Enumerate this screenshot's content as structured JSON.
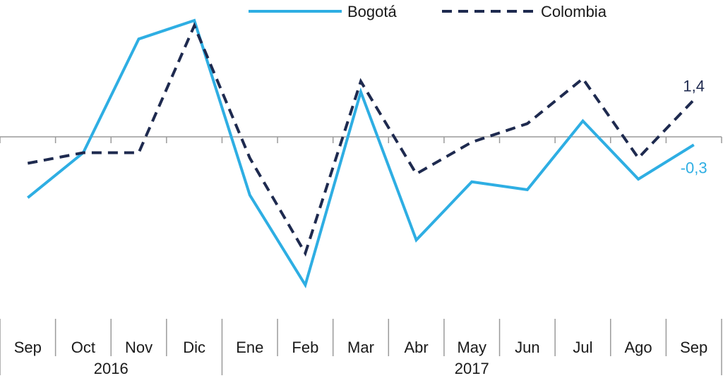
{
  "chart_data": {
    "type": "line",
    "categories": [
      "Sep",
      "Oct",
      "Nov",
      "Dic",
      "Ene",
      "Feb",
      "Mar",
      "Abr",
      "May",
      "Jun",
      "Jul",
      "Ago",
      "Sep"
    ],
    "year_groups": [
      {
        "label": "2016",
        "from": 0,
        "to": 3
      },
      {
        "label": "2017",
        "from": 4,
        "to": 12
      }
    ],
    "series": [
      {
        "name": "Bogotá",
        "color": "#2eaee3",
        "dash": "solid",
        "values": [
          -2.3,
          -0.6,
          3.7,
          4.4,
          -2.2,
          -5.6,
          1.7,
          -3.9,
          -1.7,
          -2.0,
          0.6,
          -1.6,
          -0.3
        ],
        "end_label": "-0,3"
      },
      {
        "name": "Colombia",
        "color": "#1e2a4f",
        "dash": "dashed",
        "values": [
          -1.0,
          -0.6,
          -0.6,
          4.2,
          -0.8,
          -4.4,
          2.1,
          -1.4,
          -0.2,
          0.5,
          2.2,
          -0.8,
          1.4
        ],
        "end_label": "1,4"
      }
    ],
    "xlabel": "",
    "ylabel": "",
    "ylim": [
      -6,
      5
    ],
    "grid": false,
    "legend_position": "top"
  }
}
